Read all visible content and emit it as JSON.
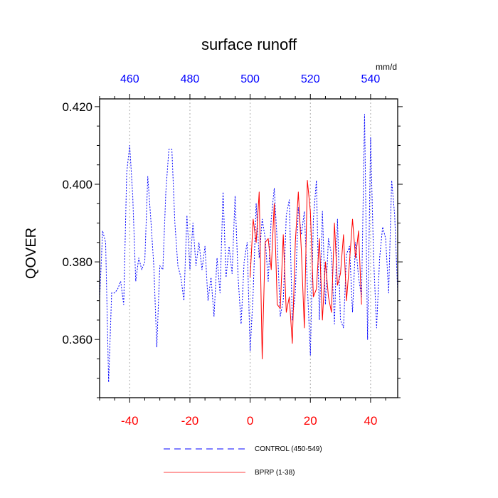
{
  "chart_data": {
    "type": "line",
    "title": "surface runoff",
    "ylabel": "QOVER",
    "units": "mm/d",
    "ylim": [
      0.345,
      0.422
    ],
    "xlim_bottom": [
      -50,
      49
    ],
    "xlim_top": [
      450,
      549
    ],
    "yticks": [
      0.36,
      0.38,
      0.4,
      0.42
    ],
    "ytick_labels": [
      "0.360",
      "0.380",
      "0.400",
      "0.420"
    ],
    "xticks_bottom": [
      -40,
      -20,
      0,
      20,
      40
    ],
    "xticks_top": [
      460,
      480,
      500,
      520,
      540
    ],
    "grid": "vertical dotted lines at major x ticks",
    "colors": {
      "control": "#0000ff",
      "bprp": "#ff0000",
      "top_axis": "#0000ff",
      "bottom_axis": "#ff0000"
    },
    "legend_position": "bottom-center",
    "series": [
      {
        "name": "CONTROL (450-549)",
        "style": "dashed",
        "x_start": -50,
        "values": [
          0.37,
          0.388,
          0.385,
          0.349,
          0.372,
          0.372,
          0.373,
          0.375,
          0.369,
          0.403,
          0.41,
          0.397,
          0.375,
          0.381,
          0.378,
          0.38,
          0.402,
          0.391,
          0.379,
          0.358,
          0.379,
          0.378,
          0.398,
          0.409,
          0.409,
          0.39,
          0.379,
          0.376,
          0.37,
          0.392,
          0.378,
          0.39,
          0.379,
          0.385,
          0.378,
          0.384,
          0.37,
          0.376,
          0.366,
          0.381,
          0.372,
          0.398,
          0.376,
          0.384,
          0.377,
          0.397,
          0.376,
          0.364,
          0.38,
          0.385,
          0.357,
          0.372,
          0.395,
          0.381,
          0.391,
          0.386,
          0.375,
          0.391,
          0.399,
          0.385,
          0.366,
          0.37,
          0.392,
          0.396,
          0.365,
          0.372,
          0.394,
          0.387,
          0.393,
          0.374,
          0.356,
          0.391,
          0.401,
          0.365,
          0.393,
          0.369,
          0.386,
          0.382,
          0.364,
          0.391,
          0.365,
          0.363,
          0.382,
          0.384,
          0.367,
          0.385,
          0.376,
          0.371,
          0.418,
          0.36,
          0.412,
          0.381,
          0.363,
          0.381,
          0.389,
          0.386,
          0.372,
          0.401,
          0.392,
          0.372
        ]
      },
      {
        "name": "BPRP (1-38)",
        "style": "solid",
        "x_start": 0,
        "values": [
          0.376,
          0.391,
          0.385,
          0.398,
          0.355,
          0.385,
          0.386,
          0.378,
          0.395,
          0.369,
          0.368,
          0.387,
          0.367,
          0.371,
          0.359,
          0.385,
          0.398,
          0.383,
          0.363,
          0.401,
          0.393,
          0.371,
          0.373,
          0.386,
          0.365,
          0.38,
          0.371,
          0.367,
          0.39,
          0.374,
          0.377,
          0.387,
          0.37,
          0.38,
          0.391,
          0.381,
          0.388,
          0.369
        ]
      }
    ]
  },
  "legend": [
    {
      "label": "CONTROL (450-549)",
      "color": "#0000ff",
      "style": "dashed"
    },
    {
      "label": "BPRP (1-38)",
      "color": "#ff0000",
      "style": "solid"
    }
  ]
}
